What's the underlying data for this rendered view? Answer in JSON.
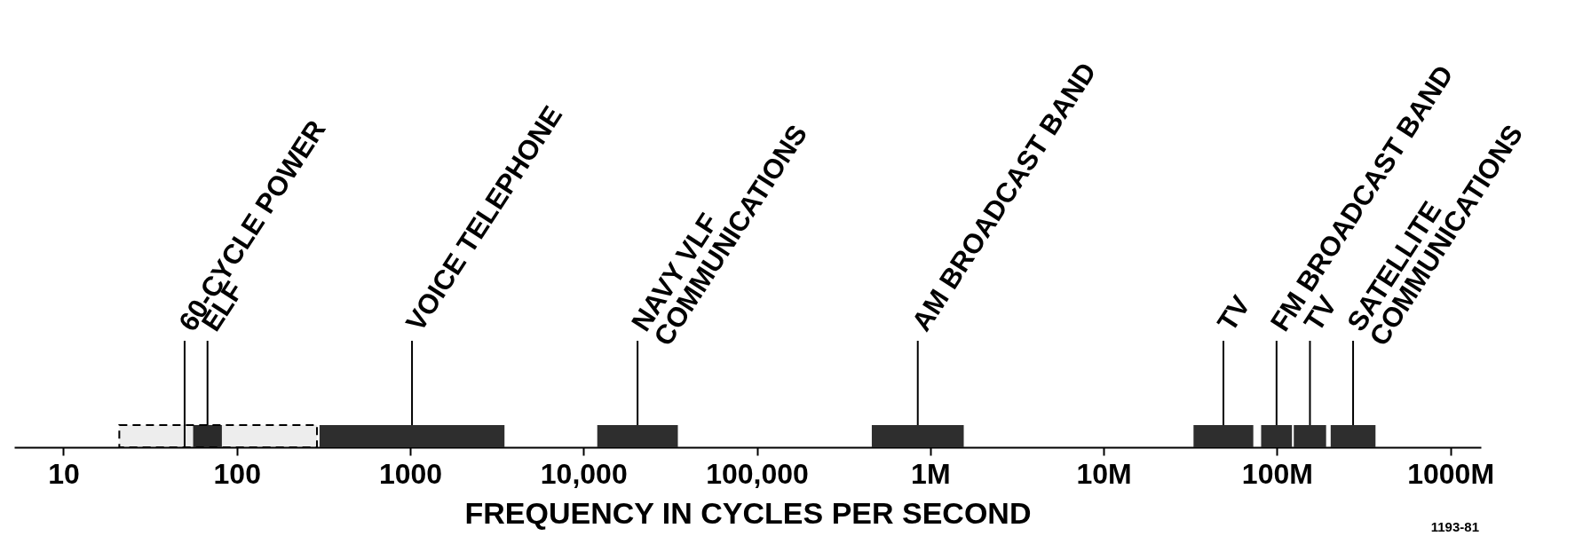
{
  "chart_data": {
    "type": "bar",
    "orientation": "horizontal",
    "log": "x",
    "xlabel": "FREQUENCY IN CYCLES PER SECOND",
    "xlim": [
      5.2,
      1500000000
    ],
    "xticks": [
      10,
      100,
      1000,
      {
        "value": 10000,
        "label": "10,000"
      },
      {
        "value": 100000,
        "label": "100,000"
      },
      {
        "value": 1000000,
        "label": "1M"
      },
      {
        "value": 10000000,
        "label": "10M"
      },
      {
        "value": 100000000,
        "label": "100M"
      },
      {
        "value": 1000000000,
        "label": "1000M"
      }
    ],
    "series": [
      {
        "name": "ELF",
        "color": "#2e2e2e",
        "base": [
          56
        ],
        "values": [
          26
        ]
      },
      {
        "name": "VOICE TELEPHONE",
        "color": "#2e2e2e",
        "base": [
          300
        ],
        "values": [
          3200
        ]
      },
      {
        "name": "NAVY VLF\nCOMMUNICATIONS",
        "color": "#2e2e2e",
        "base": [
          12000
        ],
        "values": [
          23000
        ]
      },
      {
        "name": "AM BROADCAST BAND",
        "color": "#2e2e2e",
        "base": [
          460000
        ],
        "values": [
          1100000
        ]
      },
      {
        "name": "TV",
        "color": "#2e2e2e",
        "base": [
          33000000
        ],
        "values": [
          40000000
        ]
      },
      {
        "name": "FM BROADCAST BAND",
        "color": "#2e2e2e",
        "base": [
          81000000
        ],
        "values": [
          41000000
        ]
      },
      {
        "name": "TV",
        "color": "#2e2e2e",
        "base": [
          125000000
        ],
        "values": [
          67000000
        ]
      },
      {
        "name": "SATELLITE\nCOMMUNICATIONS",
        "color": "#2e2e2e",
        "base": [
          204000000
        ],
        "values": [
          166000000
        ]
      }
    ],
    "ref_lines": [
      {
        "axis": "x",
        "value": 50,
        "label": "60-CYCLE POWER",
        "color": "#000000"
      }
    ],
    "bands": [
      {
        "axis": "x",
        "from": 21,
        "to": 290,
        "color": "#000000"
      }
    ],
    "annotations": [
      "1193-81"
    ]
  }
}
